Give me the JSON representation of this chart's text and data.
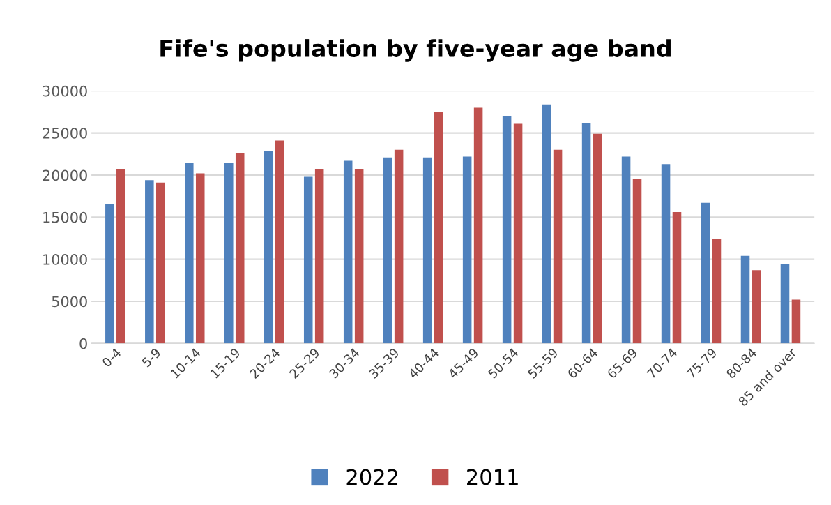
{
  "chart_data": {
    "type": "bar",
    "title": "Fife's population by five-year age band",
    "categories": [
      "0-4",
      "5-9",
      "10-14",
      "15-19",
      "20-24",
      "25-29",
      "30-34",
      "35-39",
      "40-44",
      "45-49",
      "50-54",
      "55-59",
      "60-64",
      "65-69",
      "70-74",
      "75-79",
      "80-84",
      "85 and over"
    ],
    "series": [
      {
        "name": "2022",
        "color": "#4f81bd",
        "values": [
          16600,
          19400,
          21500,
          21400,
          22900,
          19800,
          21700,
          22100,
          22100,
          22200,
          27000,
          28400,
          26200,
          22200,
          21300,
          16700,
          10400,
          9400
        ]
      },
      {
        "name": "2011",
        "color": "#c0504d",
        "values": [
          20700,
          19100,
          20200,
          22600,
          24100,
          20700,
          20700,
          23000,
          27500,
          28000,
          26100,
          23000,
          24900,
          19500,
          15600,
          12400,
          8700,
          5200
        ]
      }
    ],
    "ylim": [
      0,
      30000
    ],
    "yticks": [
      0,
      5000,
      10000,
      15000,
      20000,
      25000,
      30000
    ],
    "grid": "y",
    "legend": "bottom"
  }
}
